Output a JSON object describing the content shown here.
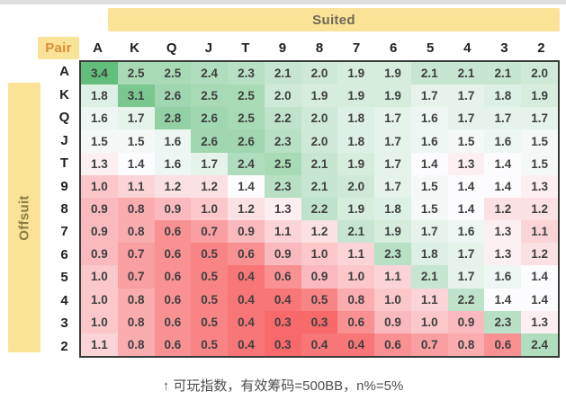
{
  "banners": {
    "suited_label": "Suited",
    "offsuit_label": "Offsuit",
    "pair_label": "Pair",
    "banner_color": "#FAE396",
    "suited_text_color": "#6F6A58",
    "offsuit_text_color": "#8B7D42",
    "pair_text_color": "#DB8C3B"
  },
  "caption": {
    "text": "↑ 可玩指数，有效筹码=500BB，n%=5%"
  },
  "chart_data": {
    "type": "heatmap",
    "columns": [
      "A",
      "K",
      "Q",
      "J",
      "T",
      "9",
      "8",
      "7",
      "6",
      "5",
      "4",
      "3",
      "2"
    ],
    "rows": [
      "A",
      "K",
      "Q",
      "J",
      "T",
      "9",
      "8",
      "7",
      "6",
      "5",
      "4",
      "3",
      "2"
    ],
    "upper_triangle_label": "Suited",
    "lower_triangle_label": "Offsuit",
    "diagonal_label": "Pair",
    "caption": "↑ 可玩指数，有效筹码=500BB，n%=5%",
    "matrix": [
      [
        3.4,
        2.5,
        2.5,
        2.4,
        2.3,
        2.1,
        2.0,
        1.9,
        1.9,
        2.1,
        2.1,
        2.1,
        2.0
      ],
      [
        1.8,
        3.1,
        2.6,
        2.5,
        2.5,
        2.0,
        1.9,
        1.9,
        1.9,
        1.7,
        1.7,
        1.8,
        1.9
      ],
      [
        1.6,
        1.7,
        2.8,
        2.6,
        2.5,
        2.2,
        2.0,
        1.8,
        1.7,
        1.6,
        1.7,
        1.7,
        1.7
      ],
      [
        1.5,
        1.5,
        1.6,
        2.6,
        2.6,
        2.3,
        2.0,
        1.8,
        1.7,
        1.6,
        1.5,
        1.6,
        1.5
      ],
      [
        1.3,
        1.4,
        1.6,
        1.7,
        2.4,
        2.5,
        2.1,
        1.9,
        1.7,
        1.4,
        1.3,
        1.4,
        1.5
      ],
      [
        1.0,
        1.1,
        1.2,
        1.2,
        1.4,
        2.3,
        2.1,
        2.0,
        1.7,
        1.5,
        1.4,
        1.4,
        1.3
      ],
      [
        0.9,
        0.8,
        0.9,
        1.0,
        1.2,
        1.3,
        2.2,
        1.9,
        1.8,
        1.5,
        1.4,
        1.2,
        1.2
      ],
      [
        0.9,
        0.8,
        0.6,
        0.7,
        0.9,
        1.1,
        1.2,
        2.1,
        1.9,
        1.7,
        1.6,
        1.3,
        1.1
      ],
      [
        0.9,
        0.7,
        0.6,
        0.5,
        0.6,
        0.9,
        1.0,
        1.1,
        2.3,
        1.8,
        1.7,
        1.3,
        1.2
      ],
      [
        1.0,
        0.7,
        0.6,
        0.5,
        0.4,
        0.6,
        0.9,
        1.0,
        1.1,
        2.1,
        1.7,
        1.6,
        1.4
      ],
      [
        1.0,
        0.8,
        0.6,
        0.5,
        0.4,
        0.4,
        0.5,
        0.8,
        1.0,
        1.1,
        2.2,
        1.4,
        1.4
      ],
      [
        1.0,
        0.8,
        0.6,
        0.5,
        0.4,
        0.3,
        0.3,
        0.6,
        0.9,
        1.0,
        0.9,
        2.3,
        1.3
      ],
      [
        1.1,
        0.8,
        0.6,
        0.5,
        0.4,
        0.3,
        0.4,
        0.4,
        0.6,
        0.7,
        0.8,
        0.6,
        2.4
      ]
    ],
    "color_scale": {
      "min": 0.3,
      "mid": 1.4,
      "max": 3.4,
      "min_color": "#F8696B",
      "mid_color": "#FCFCFF",
      "max_color": "#63BE7B"
    }
  }
}
